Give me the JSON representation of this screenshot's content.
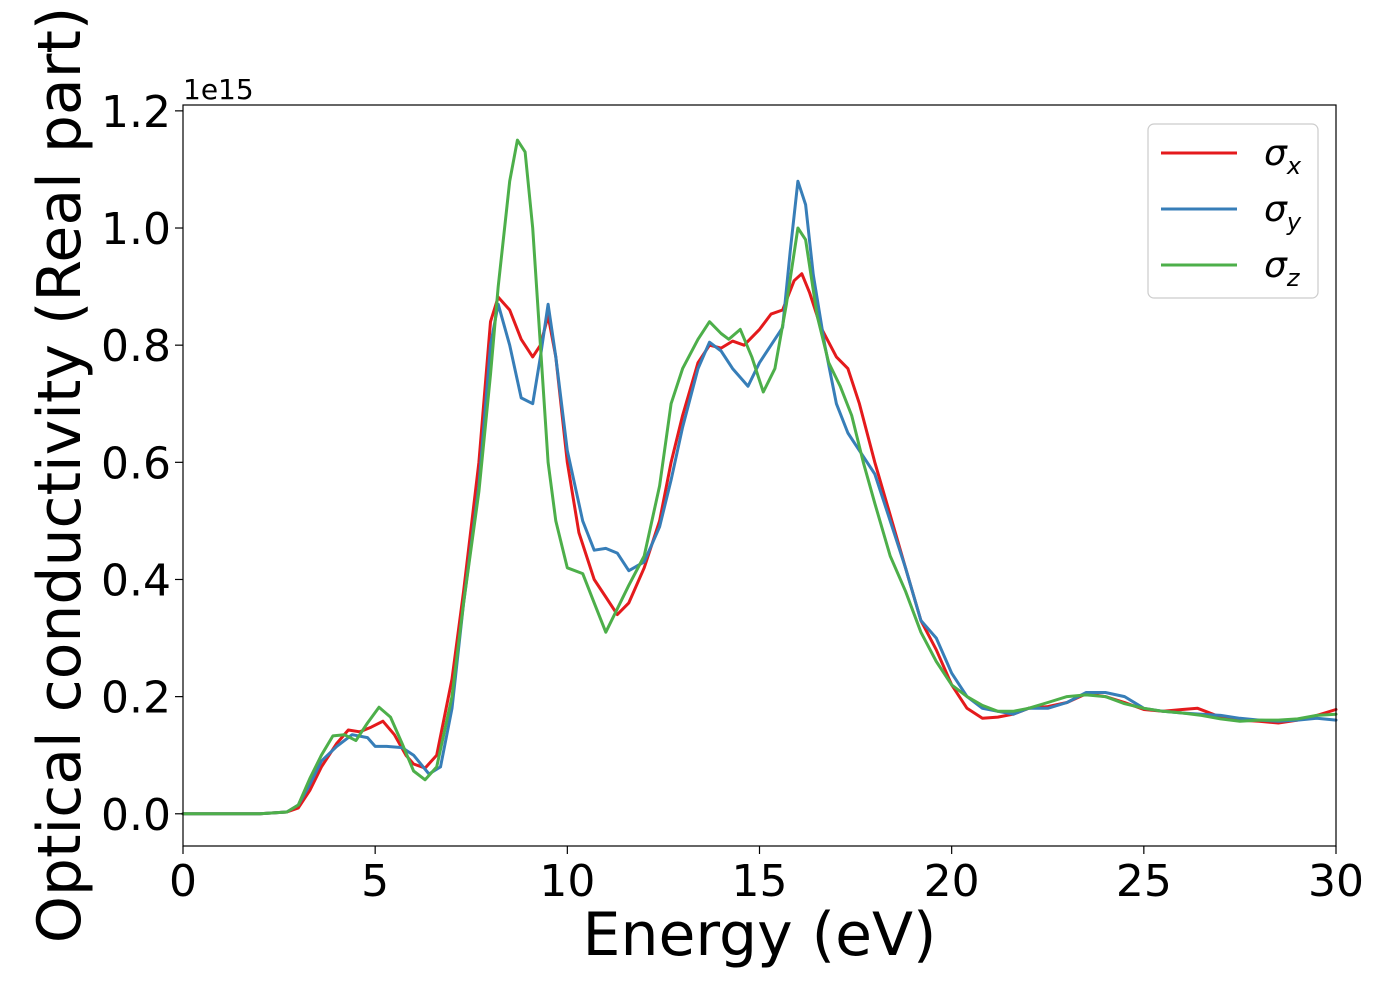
{
  "chart_data": {
    "type": "line",
    "xlabel": "Energy (eV)",
    "ylabel": "Optical conductivity (Real part)",
    "y_offset_label": "1e15",
    "xlim": [
      0,
      30
    ],
    "ylim": [
      -0.055,
      1.21
    ],
    "x_ticks": [
      0,
      5,
      10,
      15,
      20,
      25,
      30
    ],
    "x_tick_labels": [
      "0",
      "5",
      "10",
      "15",
      "20",
      "25",
      "30"
    ],
    "y_ticks": [
      0.0,
      0.2,
      0.4,
      0.6,
      0.8,
      1.0,
      1.2
    ],
    "y_tick_labels": [
      "0.0",
      "0.2",
      "0.4",
      "0.6",
      "0.8",
      "1.0",
      "1.2"
    ],
    "grid": false,
    "legend_position": "top-right",
    "series": [
      {
        "name": "σx",
        "symbol": "σ",
        "subscript": "x",
        "color": "#e41a1c",
        "points": [
          [
            0,
            0.0
          ],
          [
            2,
            0.0
          ],
          [
            2.7,
            0.003
          ],
          [
            3.0,
            0.01
          ],
          [
            3.3,
            0.04
          ],
          [
            3.6,
            0.08
          ],
          [
            4.0,
            0.12
          ],
          [
            4.3,
            0.143
          ],
          [
            4.6,
            0.14
          ],
          [
            4.9,
            0.148
          ],
          [
            5.2,
            0.158
          ],
          [
            5.5,
            0.135
          ],
          [
            5.8,
            0.1
          ],
          [
            6.0,
            0.085
          ],
          [
            6.3,
            0.078
          ],
          [
            6.6,
            0.1
          ],
          [
            7.0,
            0.23
          ],
          [
            7.3,
            0.38
          ],
          [
            7.7,
            0.6
          ],
          [
            8.0,
            0.84
          ],
          [
            8.2,
            0.882
          ],
          [
            8.5,
            0.86
          ],
          [
            8.8,
            0.81
          ],
          [
            9.1,
            0.78
          ],
          [
            9.3,
            0.8
          ],
          [
            9.5,
            0.85
          ],
          [
            9.7,
            0.78
          ],
          [
            10.0,
            0.6
          ],
          [
            10.3,
            0.48
          ],
          [
            10.7,
            0.4
          ],
          [
            11.0,
            0.37
          ],
          [
            11.3,
            0.34
          ],
          [
            11.6,
            0.36
          ],
          [
            12.0,
            0.42
          ],
          [
            12.4,
            0.5
          ],
          [
            12.7,
            0.6
          ],
          [
            13.0,
            0.68
          ],
          [
            13.4,
            0.77
          ],
          [
            13.7,
            0.8
          ],
          [
            14.0,
            0.795
          ],
          [
            14.3,
            0.807
          ],
          [
            14.6,
            0.8
          ],
          [
            15.0,
            0.827
          ],
          [
            15.3,
            0.853
          ],
          [
            15.6,
            0.86
          ],
          [
            15.9,
            0.91
          ],
          [
            16.1,
            0.922
          ],
          [
            16.3,
            0.89
          ],
          [
            16.6,
            0.83
          ],
          [
            17.0,
            0.78
          ],
          [
            17.3,
            0.76
          ],
          [
            17.6,
            0.7
          ],
          [
            18.0,
            0.6
          ],
          [
            18.4,
            0.51
          ],
          [
            18.8,
            0.42
          ],
          [
            19.2,
            0.33
          ],
          [
            19.6,
            0.28
          ],
          [
            20.0,
            0.22
          ],
          [
            20.4,
            0.18
          ],
          [
            20.8,
            0.163
          ],
          [
            21.2,
            0.165
          ],
          [
            21.6,
            0.17
          ],
          [
            22.0,
            0.18
          ],
          [
            22.5,
            0.183
          ],
          [
            23.0,
            0.19
          ],
          [
            23.5,
            0.205
          ],
          [
            24.0,
            0.2
          ],
          [
            24.5,
            0.19
          ],
          [
            25.0,
            0.178
          ],
          [
            25.5,
            0.175
          ],
          [
            26.0,
            0.178
          ],
          [
            26.4,
            0.18
          ],
          [
            27.0,
            0.165
          ],
          [
            27.5,
            0.16
          ],
          [
            28.0,
            0.158
          ],
          [
            28.5,
            0.155
          ],
          [
            29.0,
            0.16
          ],
          [
            29.5,
            0.168
          ],
          [
            30.0,
            0.178
          ]
        ]
      },
      {
        "name": "σy",
        "symbol": "σ",
        "subscript": "y",
        "color": "#377eb8",
        "points": [
          [
            0,
            0.0
          ],
          [
            2,
            0.0
          ],
          [
            2.7,
            0.003
          ],
          [
            3.0,
            0.015
          ],
          [
            3.3,
            0.05
          ],
          [
            3.6,
            0.09
          ],
          [
            4.0,
            0.115
          ],
          [
            4.4,
            0.135
          ],
          [
            4.8,
            0.13
          ],
          [
            5.0,
            0.115
          ],
          [
            5.3,
            0.115
          ],
          [
            5.7,
            0.113
          ],
          [
            6.0,
            0.1
          ],
          [
            6.4,
            0.068
          ],
          [
            6.7,
            0.08
          ],
          [
            7.0,
            0.18
          ],
          [
            7.3,
            0.36
          ],
          [
            7.7,
            0.56
          ],
          [
            8.0,
            0.8
          ],
          [
            8.2,
            0.87
          ],
          [
            8.5,
            0.8
          ],
          [
            8.8,
            0.71
          ],
          [
            9.1,
            0.7
          ],
          [
            9.3,
            0.78
          ],
          [
            9.5,
            0.87
          ],
          [
            9.7,
            0.78
          ],
          [
            10.0,
            0.62
          ],
          [
            10.4,
            0.5
          ],
          [
            10.7,
            0.45
          ],
          [
            11.0,
            0.453
          ],
          [
            11.3,
            0.445
          ],
          [
            11.6,
            0.415
          ],
          [
            12.0,
            0.43
          ],
          [
            12.4,
            0.49
          ],
          [
            12.7,
            0.57
          ],
          [
            13.0,
            0.66
          ],
          [
            13.4,
            0.76
          ],
          [
            13.7,
            0.805
          ],
          [
            14.0,
            0.79
          ],
          [
            14.3,
            0.76
          ],
          [
            14.7,
            0.73
          ],
          [
            15.0,
            0.77
          ],
          [
            15.3,
            0.8
          ],
          [
            15.6,
            0.83
          ],
          [
            15.8,
            0.96
          ],
          [
            16.0,
            1.08
          ],
          [
            16.2,
            1.04
          ],
          [
            16.4,
            0.92
          ],
          [
            16.7,
            0.8
          ],
          [
            17.0,
            0.7
          ],
          [
            17.3,
            0.65
          ],
          [
            17.6,
            0.62
          ],
          [
            18.0,
            0.58
          ],
          [
            18.4,
            0.5
          ],
          [
            18.8,
            0.42
          ],
          [
            19.2,
            0.33
          ],
          [
            19.6,
            0.3
          ],
          [
            20.0,
            0.24
          ],
          [
            20.4,
            0.2
          ],
          [
            20.8,
            0.18
          ],
          [
            21.2,
            0.175
          ],
          [
            21.6,
            0.17
          ],
          [
            22.0,
            0.18
          ],
          [
            22.5,
            0.18
          ],
          [
            23.0,
            0.19
          ],
          [
            23.5,
            0.207
          ],
          [
            24.0,
            0.207
          ],
          [
            24.5,
            0.2
          ],
          [
            25.0,
            0.18
          ],
          [
            25.5,
            0.175
          ],
          [
            26.0,
            0.172
          ],
          [
            26.5,
            0.17
          ],
          [
            27.0,
            0.168
          ],
          [
            27.5,
            0.163
          ],
          [
            28.0,
            0.16
          ],
          [
            28.5,
            0.158
          ],
          [
            29.0,
            0.16
          ],
          [
            29.5,
            0.163
          ],
          [
            30.0,
            0.16
          ]
        ]
      },
      {
        "name": "σz",
        "symbol": "σ",
        "subscript": "z",
        "color": "#4daf4a",
        "points": [
          [
            0,
            0.0
          ],
          [
            2,
            0.0
          ],
          [
            2.7,
            0.003
          ],
          [
            3.0,
            0.015
          ],
          [
            3.3,
            0.06
          ],
          [
            3.6,
            0.1
          ],
          [
            3.9,
            0.133
          ],
          [
            4.2,
            0.135
          ],
          [
            4.5,
            0.125
          ],
          [
            4.8,
            0.155
          ],
          [
            5.1,
            0.182
          ],
          [
            5.4,
            0.165
          ],
          [
            5.7,
            0.12
          ],
          [
            6.0,
            0.073
          ],
          [
            6.3,
            0.058
          ],
          [
            6.6,
            0.08
          ],
          [
            7.0,
            0.2
          ],
          [
            7.3,
            0.36
          ],
          [
            7.7,
            0.55
          ],
          [
            8.0,
            0.75
          ],
          [
            8.2,
            0.9
          ],
          [
            8.5,
            1.08
          ],
          [
            8.7,
            1.15
          ],
          [
            8.9,
            1.13
          ],
          [
            9.1,
            1.0
          ],
          [
            9.3,
            0.8
          ],
          [
            9.5,
            0.6
          ],
          [
            9.7,
            0.5
          ],
          [
            10.0,
            0.42
          ],
          [
            10.4,
            0.41
          ],
          [
            10.7,
            0.36
          ],
          [
            11.0,
            0.31
          ],
          [
            11.3,
            0.35
          ],
          [
            11.6,
            0.39
          ],
          [
            12.0,
            0.44
          ],
          [
            12.4,
            0.56
          ],
          [
            12.7,
            0.7
          ],
          [
            13.0,
            0.76
          ],
          [
            13.4,
            0.81
          ],
          [
            13.7,
            0.84
          ],
          [
            14.0,
            0.82
          ],
          [
            14.2,
            0.81
          ],
          [
            14.5,
            0.827
          ],
          [
            14.8,
            0.78
          ],
          [
            15.1,
            0.72
          ],
          [
            15.4,
            0.76
          ],
          [
            15.7,
            0.87
          ],
          [
            16.0,
            1.0
          ],
          [
            16.2,
            0.98
          ],
          [
            16.5,
            0.85
          ],
          [
            16.8,
            0.77
          ],
          [
            17.1,
            0.73
          ],
          [
            17.4,
            0.68
          ],
          [
            17.7,
            0.6
          ],
          [
            18.0,
            0.53
          ],
          [
            18.4,
            0.44
          ],
          [
            18.8,
            0.38
          ],
          [
            19.2,
            0.31
          ],
          [
            19.6,
            0.26
          ],
          [
            20.0,
            0.22
          ],
          [
            20.4,
            0.2
          ],
          [
            20.8,
            0.185
          ],
          [
            21.2,
            0.175
          ],
          [
            21.6,
            0.175
          ],
          [
            22.0,
            0.18
          ],
          [
            22.5,
            0.19
          ],
          [
            23.0,
            0.2
          ],
          [
            23.5,
            0.203
          ],
          [
            24.0,
            0.2
          ],
          [
            24.5,
            0.188
          ],
          [
            25.0,
            0.18
          ],
          [
            25.5,
            0.175
          ],
          [
            26.0,
            0.172
          ],
          [
            26.5,
            0.168
          ],
          [
            27.0,
            0.162
          ],
          [
            27.5,
            0.158
          ],
          [
            28.0,
            0.16
          ],
          [
            28.5,
            0.16
          ],
          [
            29.0,
            0.162
          ],
          [
            29.5,
            0.168
          ],
          [
            30.0,
            0.17
          ]
        ]
      }
    ]
  }
}
